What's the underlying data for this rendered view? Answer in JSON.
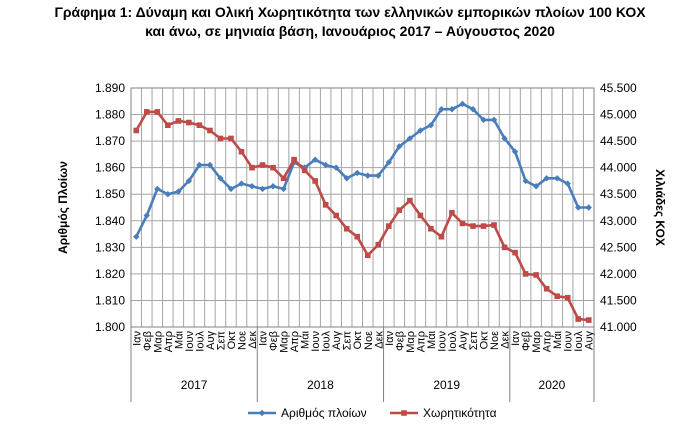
{
  "title_lines": [
    "Γράφημα 1: Δύναμη και Ολική Χωρητικότητα των ελληνικών εμπορικών πλοίων 100 ΚΟΧ",
    "και άνω, σε μηνιαία βάση, Ιανουάριος 2017 – Αύγουστος 2020"
  ],
  "chart_data": {
    "type": "line",
    "title": "Γράφημα 1: Δύναμη και Ολική Χωρητικότητα των ελληνικών εμπορικών πλοίων 100 ΚΟΧ και άνω, σε μηνιαία βάση, Ιανουάριος 2017 – Αύγουστος 2020",
    "ylabel": "Αριθμός Πλοίων",
    "y2label": "Χιλιάδες ΚΟΧ",
    "ylim": [
      1800,
      1890
    ],
    "y2lim": [
      41000,
      45500
    ],
    "y_ticks": [
      "1.800",
      "1.810",
      "1.820",
      "1.830",
      "1.840",
      "1.850",
      "1.860",
      "1.870",
      "1.880",
      "1.890"
    ],
    "y2_ticks": [
      "41.000",
      "41.500",
      "42.000",
      "42.500",
      "43.000",
      "43.500",
      "44.000",
      "44.500",
      "45.000",
      "45.500"
    ],
    "grid": true,
    "legend_position": "bottom",
    "month_labels": [
      "Ιαν",
      "Φεβ",
      "Μαρ",
      "Απρ",
      "Μάι",
      "Ιουν",
      "Ιουλ",
      "Αυγ",
      "Σεπ",
      "Οκτ",
      "Νοε",
      "Δεκ"
    ],
    "years": [
      "2017",
      "2018",
      "2019",
      "2020"
    ],
    "year_month_counts": [
      12,
      12,
      12,
      8
    ],
    "x": [
      "Ιαν 2017",
      "Φεβ 2017",
      "Μαρ 2017",
      "Απρ 2017",
      "Μάι 2017",
      "Ιουν 2017",
      "Ιουλ 2017",
      "Αυγ 2017",
      "Σεπ 2017",
      "Οκτ 2017",
      "Νοε 2017",
      "Δεκ 2017",
      "Ιαν 2018",
      "Φεβ 2018",
      "Μαρ 2018",
      "Απρ 2018",
      "Μάι 2018",
      "Ιουν 2018",
      "Ιουλ 2018",
      "Αυγ 2018",
      "Σεπ 2018",
      "Οκτ 2018",
      "Νοε 2018",
      "Δεκ 2018",
      "Ιαν 2019",
      "Φεβ 2019",
      "Μαρ 2019",
      "Απρ 2019",
      "Μάι 2019",
      "Ιουν 2019",
      "Ιουλ 2019",
      "Αυγ 2019",
      "Σεπ 2019",
      "Οκτ 2019",
      "Νοε 2019",
      "Δεκ 2019",
      "Ιαν 2020",
      "Φεβ 2020",
      "Μαρ 2020",
      "Απρ 2020",
      "Μάι 2020",
      "Ιουν 2020",
      "Ιουλ 2020",
      "Αυγ 2020"
    ],
    "series": [
      {
        "name": "Αριθμός πλοίων",
        "axis": "left",
        "color": "#4a7ebb",
        "marker": "diamond",
        "values": [
          1834,
          1842,
          1852,
          1850,
          1851,
          1855,
          1861,
          1861,
          1856,
          1852,
          1854,
          1853,
          1852,
          1853,
          1852,
          1862,
          1860,
          1863,
          1861,
          1860,
          1856,
          1858,
          1857,
          1857,
          1862,
          1868,
          1871,
          1874,
          1876,
          1882,
          1882,
          1884,
          1882,
          1878,
          1878,
          1871,
          1866,
          1855,
          1853,
          1856,
          1856,
          1854,
          1845,
          1845
        ]
      },
      {
        "name": "Χωρητικότητα",
        "axis": "right",
        "color": "#be4b48",
        "marker": "square",
        "values": [
          44700,
          45050,
          45050,
          44800,
          44880,
          44850,
          44800,
          44700,
          44550,
          44550,
          44300,
          44000,
          44050,
          44000,
          43800,
          44150,
          43950,
          43750,
          43300,
          43100,
          42850,
          42700,
          42350,
          42550,
          42900,
          43200,
          43380,
          43100,
          42850,
          42700,
          43150,
          42950,
          42900,
          42900,
          42920,
          42500,
          42400,
          42000,
          41980,
          41720,
          41580,
          41550,
          41150,
          41130
        ]
      }
    ]
  }
}
